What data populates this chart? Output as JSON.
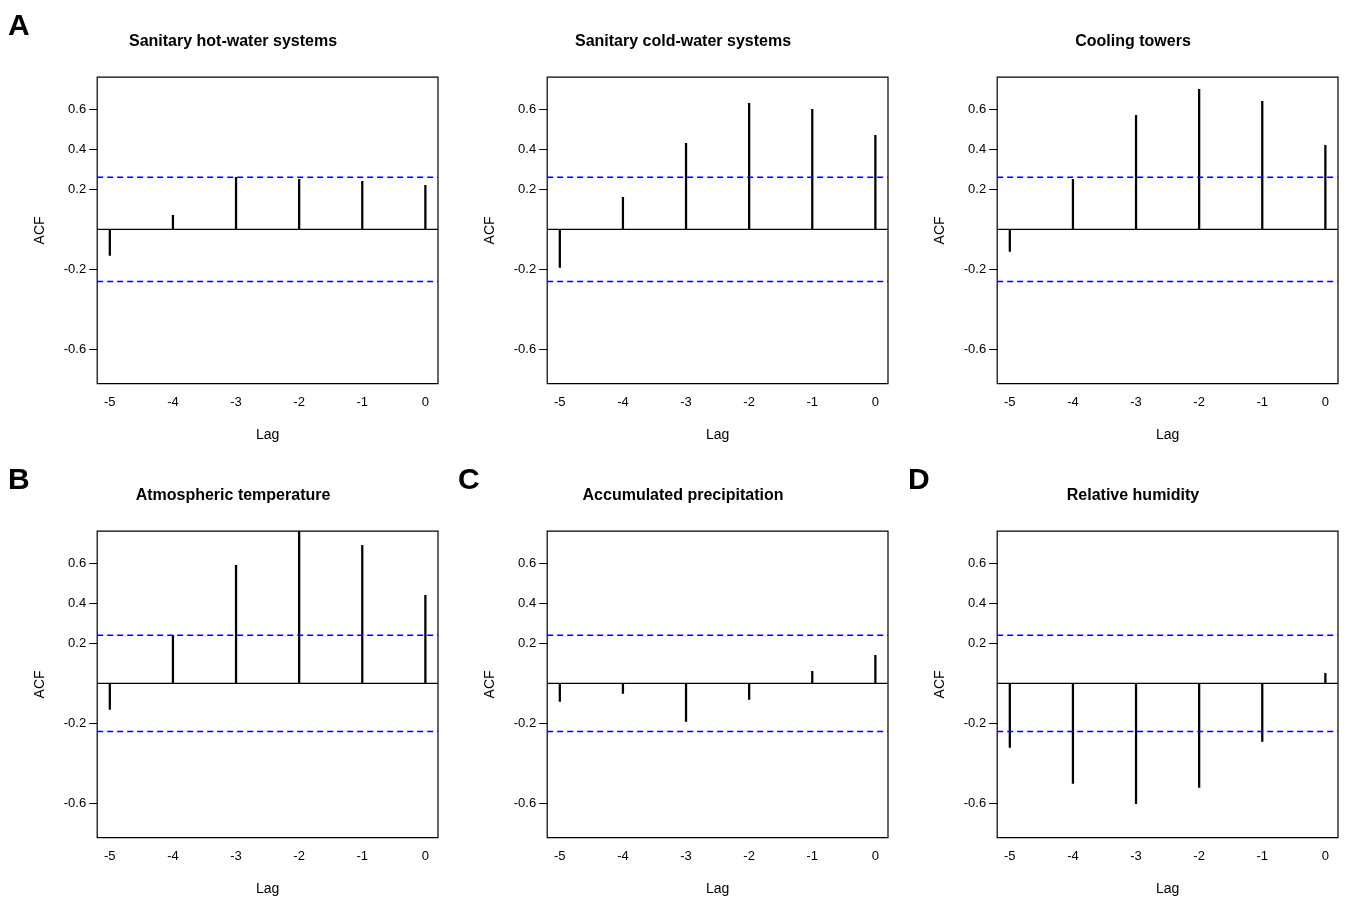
{
  "chart_data": [
    {
      "type": "bar",
      "title": "Sanitary hot-water systems",
      "xlabel": "Lag",
      "ylabel": "ACF",
      "annotations": [
        "A"
      ],
      "x": [
        -5,
        -4,
        -3,
        -2,
        -1,
        0
      ],
      "values": [
        -0.13,
        0.07,
        0.26,
        0.25,
        0.24,
        0.22
      ],
      "color": "#000000",
      "xlim": [
        -5.2,
        0.2
      ],
      "ylim": [
        -0.77,
        0.76
      ],
      "xticks": [
        -5,
        -4,
        -3,
        -2,
        -1,
        0
      ],
      "yticks": [
        -0.6,
        -0.2,
        0.2,
        0.4,
        0.6
      ],
      "ref_lines": [
        {
          "axis": "y",
          "value": 0.26,
          "color": "#0000ff",
          "line_style": "dashed"
        },
        {
          "axis": "y",
          "value": -0.26,
          "color": "#0000ff",
          "line_style": "dashed"
        }
      ]
    },
    {
      "type": "bar",
      "title": "Sanitary cold-water systems",
      "xlabel": "Lag",
      "ylabel": "ACF",
      "x": [
        -5,
        -4,
        -3,
        -2,
        -1,
        0
      ],
      "values": [
        -0.19,
        0.16,
        0.43,
        0.63,
        0.6,
        0.47
      ],
      "color": "#000000",
      "xlim": [
        -5.2,
        0.2
      ],
      "ylim": [
        -0.77,
        0.76
      ],
      "xticks": [
        -5,
        -4,
        -3,
        -2,
        -1,
        0
      ],
      "yticks": [
        -0.6,
        -0.2,
        0.2,
        0.4,
        0.6
      ],
      "ref_lines": [
        {
          "axis": "y",
          "value": 0.26,
          "color": "#0000ff",
          "line_style": "dashed"
        },
        {
          "axis": "y",
          "value": -0.26,
          "color": "#0000ff",
          "line_style": "dashed"
        }
      ]
    },
    {
      "type": "bar",
      "title": "Cooling towers",
      "xlabel": "Lag",
      "ylabel": "ACF",
      "x": [
        -5,
        -4,
        -3,
        -2,
        -1,
        0
      ],
      "values": [
        -0.11,
        0.25,
        0.57,
        0.7,
        0.64,
        0.42
      ],
      "color": "#000000",
      "xlim": [
        -5.2,
        0.2
      ],
      "ylim": [
        -0.77,
        0.76
      ],
      "xticks": [
        -5,
        -4,
        -3,
        -2,
        -1,
        0
      ],
      "yticks": [
        -0.6,
        -0.2,
        0.2,
        0.4,
        0.6
      ],
      "ref_lines": [
        {
          "axis": "y",
          "value": 0.26,
          "color": "#0000ff",
          "line_style": "dashed"
        },
        {
          "axis": "y",
          "value": -0.26,
          "color": "#0000ff",
          "line_style": "dashed"
        }
      ]
    },
    {
      "type": "bar",
      "title": "Atmospheric temperature",
      "xlabel": "Lag",
      "ylabel": "ACF",
      "annotations": [
        "B"
      ],
      "x": [
        -5,
        -4,
        -3,
        -2,
        -1,
        0
      ],
      "values": [
        -0.13,
        0.24,
        0.59,
        0.76,
        0.69,
        0.44
      ],
      "color": "#000000",
      "xlim": [
        -5.2,
        0.2
      ],
      "ylim": [
        -0.77,
        0.76
      ],
      "xticks": [
        -5,
        -4,
        -3,
        -2,
        -1,
        0
      ],
      "yticks": [
        -0.6,
        -0.2,
        0.2,
        0.4,
        0.6
      ],
      "ref_lines": [
        {
          "axis": "y",
          "value": 0.24,
          "color": "#0000ff",
          "line_style": "dashed"
        },
        {
          "axis": "y",
          "value": -0.24,
          "color": "#0000ff",
          "line_style": "dashed"
        }
      ]
    },
    {
      "type": "bar",
      "title": "Accumulated precipitation",
      "xlabel": "Lag",
      "ylabel": "ACF",
      "annotations": [
        "C"
      ],
      "x": [
        -5,
        -4,
        -3,
        -2,
        -1,
        0
      ],
      "values": [
        -0.09,
        -0.05,
        -0.19,
        -0.08,
        0.06,
        0.14
      ],
      "color": "#000000",
      "xlim": [
        -5.2,
        0.2
      ],
      "ylim": [
        -0.77,
        0.76
      ],
      "xticks": [
        -5,
        -4,
        -3,
        -2,
        -1,
        0
      ],
      "yticks": [
        -0.6,
        -0.2,
        0.2,
        0.4,
        0.6
      ],
      "ref_lines": [
        {
          "axis": "y",
          "value": 0.24,
          "color": "#0000ff",
          "line_style": "dashed"
        },
        {
          "axis": "y",
          "value": -0.24,
          "color": "#0000ff",
          "line_style": "dashed"
        }
      ]
    },
    {
      "type": "bar",
      "title": "Relative humidity",
      "xlabel": "Lag",
      "ylabel": "ACF",
      "annotations": [
        "D"
      ],
      "x": [
        -5,
        -4,
        -3,
        -2,
        -1,
        0
      ],
      "values": [
        -0.32,
        -0.5,
        -0.6,
        -0.52,
        -0.29,
        0.05
      ],
      "color": "#000000",
      "xlim": [
        -5.2,
        0.2
      ],
      "ylim": [
        -0.77,
        0.76
      ],
      "xticks": [
        -5,
        -4,
        -3,
        -2,
        -1,
        0
      ],
      "yticks": [
        -0.6,
        -0.2,
        0.2,
        0.4,
        0.6
      ],
      "ref_lines": [
        {
          "axis": "y",
          "value": 0.24,
          "color": "#0000ff",
          "line_style": "dashed"
        },
        {
          "axis": "y",
          "value": -0.24,
          "color": "#0000ff",
          "line_style": "dashed"
        }
      ]
    }
  ]
}
